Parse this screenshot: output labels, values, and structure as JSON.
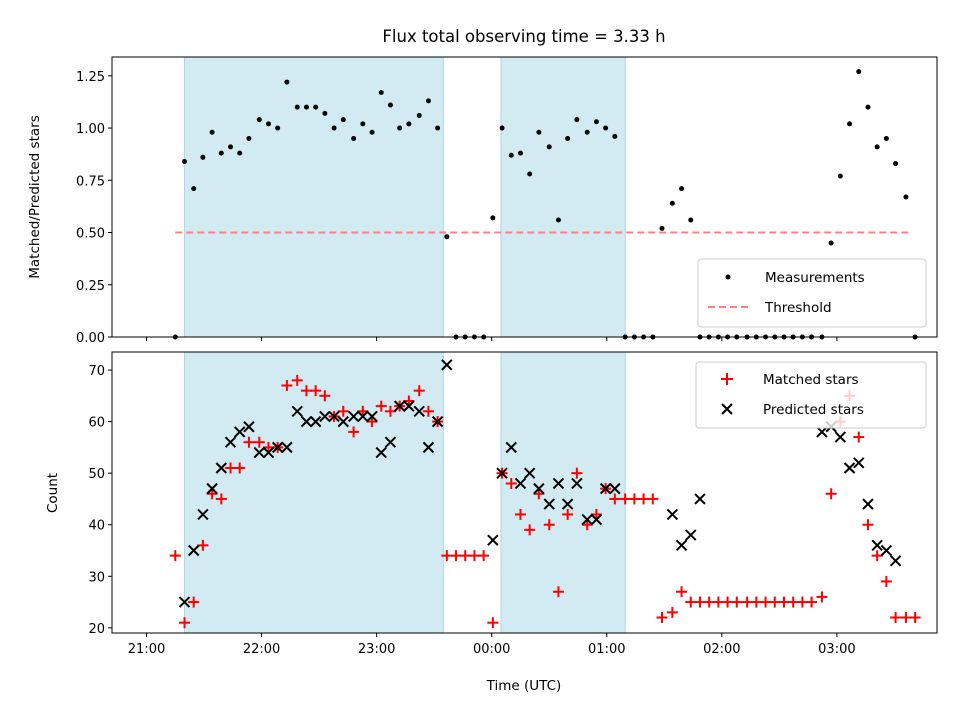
{
  "chart_data": {
    "title": "Flux total observing time = 3.33 h",
    "xlabel": "Time (UTC)",
    "x_unit": "hours since 21:00 UTC",
    "x_tick_labels": [
      "21:00",
      "22:00",
      "23:00",
      "00:00",
      "01:00",
      "02:00",
      "03:00"
    ],
    "x_ticks": [
      0,
      1,
      2,
      3,
      4,
      5,
      6
    ],
    "xlim": [
      -0.3,
      6.87
    ],
    "shaded_intervals": [
      [
        0.33,
        2.58
      ],
      [
        3.08,
        4.16
      ]
    ],
    "shade_color": "#add8e6",
    "panels": [
      {
        "type": "scatter",
        "ylabel": "Matched/Predicted stars",
        "ylim": [
          0,
          1.34
        ],
        "y_ticks": [
          0.0,
          0.25,
          0.5,
          0.75,
          1.0,
          1.25
        ],
        "y_tick_labels": [
          "0.00",
          "0.25",
          "0.50",
          "0.75",
          "1.00",
          "1.25"
        ],
        "legend": {
          "position": "lower right",
          "entries": [
            "Measurements",
            "Threshold"
          ]
        },
        "threshold": {
          "name": "Threshold",
          "value": 0.5,
          "x_range": [
            0.25,
            6.65
          ],
          "color": "#ff7f7f"
        },
        "series": [
          {
            "name": "Measurements",
            "marker": "dot",
            "color": "#000000",
            "x": [
              0.25,
              0.33,
              0.41,
              0.49,
              0.57,
              0.65,
              0.73,
              0.81,
              0.89,
              0.98,
              1.06,
              1.14,
              1.22,
              1.31,
              1.39,
              1.47,
              1.55,
              1.63,
              1.71,
              1.8,
              1.88,
              1.96,
              2.04,
              2.12,
              2.2,
              2.28,
              2.37,
              2.45,
              2.53,
              2.61,
              2.69,
              2.77,
              2.85,
              2.93,
              3.01,
              3.09,
              3.17,
              3.25,
              3.33,
              3.41,
              3.5,
              3.58,
              3.66,
              3.74,
              3.83,
              3.91,
              3.99,
              4.07,
              4.16,
              4.24,
              4.32,
              4.4,
              4.48,
              4.57,
              4.65,
              4.73,
              4.81,
              4.89,
              4.97,
              5.05,
              5.13,
              5.22,
              5.3,
              5.38,
              5.46,
              5.54,
              5.62,
              5.7,
              5.78,
              5.87,
              5.95,
              6.03,
              6.11,
              6.19,
              6.27,
              6.35,
              6.43,
              6.51,
              6.6,
              6.68
            ],
            "y": [
              0.0,
              0.84,
              0.71,
              0.86,
              0.98,
              0.88,
              0.91,
              0.88,
              0.95,
              1.04,
              1.02,
              1.0,
              1.22,
              1.1,
              1.1,
              1.1,
              1.07,
              1.0,
              1.04,
              0.95,
              1.02,
              0.98,
              1.17,
              1.11,
              1.0,
              1.02,
              1.06,
              1.13,
              1.0,
              0.48,
              0.0,
              0.0,
              0.0,
              0.0,
              0.57,
              1.0,
              0.87,
              0.88,
              0.78,
              0.98,
              0.91,
              0.56,
              0.95,
              1.04,
              0.98,
              1.03,
              1.0,
              0.96,
              0.0,
              0.0,
              0.0,
              0.0,
              0.52,
              0.64,
              0.71,
              0.56,
              0.0,
              0.0,
              0.0,
              0.0,
              0.0,
              0.0,
              0.0,
              0.0,
              0.0,
              0.0,
              0.0,
              0.0,
              0.0,
              0.0,
              0.45,
              0.77,
              1.02,
              1.27,
              1.1,
              0.91,
              0.95,
              0.83,
              0.67,
              0.0
            ]
          }
        ]
      },
      {
        "type": "scatter",
        "ylabel": "Count",
        "ylim": [
          19,
          73.5
        ],
        "y_ticks": [
          20,
          30,
          40,
          50,
          60,
          70
        ],
        "y_tick_labels": [
          "20",
          "30",
          "40",
          "50",
          "60",
          "70"
        ],
        "legend": {
          "position": "upper right",
          "entries": [
            "Matched stars",
            "Predicted stars"
          ]
        },
        "series": [
          {
            "name": "Matched stars",
            "marker": "plus",
            "color": "#ff0000",
            "x": [
              0.25,
              0.33,
              0.41,
              0.49,
              0.57,
              0.65,
              0.73,
              0.81,
              0.89,
              0.98,
              1.06,
              1.14,
              1.22,
              1.31,
              1.39,
              1.47,
              1.55,
              1.63,
              1.71,
              1.8,
              1.88,
              1.96,
              2.04,
              2.12,
              2.2,
              2.28,
              2.37,
              2.45,
              2.53,
              2.61,
              2.69,
              2.77,
              2.85,
              2.93,
              3.01,
              3.09,
              3.17,
              3.25,
              3.33,
              3.41,
              3.5,
              3.58,
              3.66,
              3.74,
              3.83,
              3.91,
              3.99,
              4.07,
              4.16,
              4.24,
              4.32,
              4.4,
              4.48,
              4.57,
              4.65,
              4.73,
              4.81,
              4.89,
              4.97,
              5.05,
              5.13,
              5.22,
              5.3,
              5.38,
              5.46,
              5.54,
              5.62,
              5.7,
              5.78,
              5.87,
              5.95,
              6.03,
              6.11,
              6.19,
              6.27,
              6.35,
              6.43,
              6.51,
              6.6,
              6.68
            ],
            "y": [
              34,
              21,
              25,
              36,
              46,
              45,
              51,
              51,
              56,
              56,
              55,
              55,
              67,
              68,
              66,
              66,
              65,
              61,
              62,
              58,
              62,
              60,
              63,
              62,
              63,
              64,
              66,
              62,
              60,
              34,
              34,
              34,
              34,
              34,
              21,
              50,
              48,
              42,
              39,
              46,
              40,
              27,
              42,
              50,
              40,
              42,
              47,
              45,
              45,
              45,
              45,
              45,
              22,
              23,
              27,
              25,
              25,
              25,
              25,
              25,
              25,
              25,
              25,
              25,
              25,
              25,
              25,
              25,
              25,
              26,
              46,
              60,
              65,
              57,
              40,
              34,
              29,
              22,
              22,
              22
            ]
          },
          {
            "name": "Predicted stars",
            "marker": "x",
            "color": "#000000",
            "x": [
              0.33,
              0.41,
              0.49,
              0.57,
              0.65,
              0.73,
              0.81,
              0.89,
              0.98,
              1.06,
              1.14,
              1.22,
              1.31,
              1.39,
              1.47,
              1.55,
              1.63,
              1.71,
              1.8,
              1.88,
              1.96,
              2.04,
              2.12,
              2.2,
              2.28,
              2.37,
              2.45,
              2.53,
              2.61,
              3.01,
              3.09,
              3.17,
              3.25,
              3.33,
              3.41,
              3.5,
              3.58,
              3.66,
              3.74,
              3.83,
              3.91,
              3.99,
              4.07,
              4.57,
              4.65,
              4.73,
              4.81,
              5.87,
              5.95,
              6.03,
              6.11,
              6.19,
              6.27,
              6.35,
              6.43,
              6.51
            ],
            "y": [
              25,
              35,
              42,
              47,
              51,
              56,
              58,
              59,
              54,
              54,
              55,
              55,
              62,
              60,
              60,
              61,
              61,
              60,
              61,
              61,
              61,
              54,
              56,
              63,
              63,
              62,
              55,
              60,
              71,
              37,
              50,
              55,
              48,
              50,
              47,
              44,
              48,
              44,
              48,
              41,
              41,
              47,
              47,
              42,
              36,
              38,
              45,
              58,
              59,
              57,
              51,
              52,
              44,
              36,
              35,
              33
            ]
          }
        ]
      }
    ]
  }
}
